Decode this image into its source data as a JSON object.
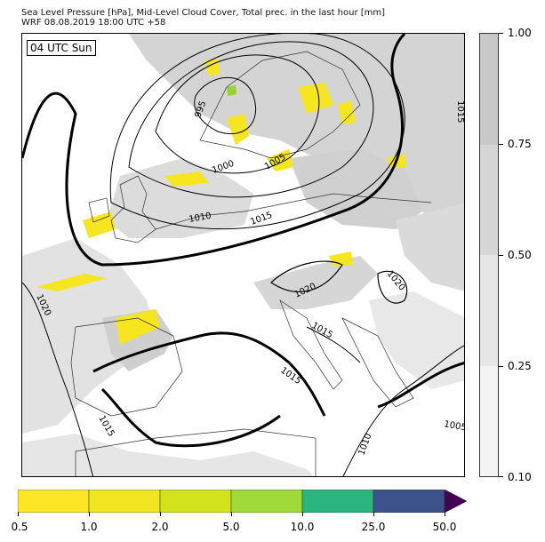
{
  "title": {
    "line1": "Sea Level Pressure [hPa], Mid-Level Cloud Cover, Total prec. in the last hour [mm]",
    "line2": "WRF 08.08.2019 18:00 UTC +58"
  },
  "map": {
    "time_label": "04 UTC Sun",
    "isobar_labels": [
      {
        "id": "isobar-995",
        "text": "995"
      },
      {
        "id": "isobar-1000",
        "text": "1000"
      },
      {
        "id": "isobar-1005-north",
        "text": "1005"
      },
      {
        "id": "isobar-1010-north",
        "text": "1010"
      },
      {
        "id": "isobar-1015-north",
        "text": "1015"
      },
      {
        "id": "isobar-1020-west",
        "text": "1020"
      },
      {
        "id": "isobar-1020-alps",
        "text": "1020"
      },
      {
        "id": "isobar-1020-east",
        "text": "1020"
      },
      {
        "id": "isobar-1015-italy",
        "text": "1015"
      },
      {
        "id": "isobar-1015-adriatic",
        "text": "1015"
      },
      {
        "id": "isobar-1015-spain",
        "text": "1015"
      },
      {
        "id": "isobar-1010-south",
        "text": "1010"
      },
      {
        "id": "isobar-1005-southeast",
        "text": "1005"
      },
      {
        "id": "isobar-1015-edge",
        "text": "1015"
      }
    ],
    "colors": {
      "cloud_light": "#e6e6e6",
      "cloud_mid": "#cfcfcf",
      "precip_yellow": "#f5e61f",
      "precip_green": "#9ad12a",
      "isobar": "#000000",
      "coast": "#333333"
    }
  },
  "cloud_colorbar": {
    "ticks": [
      "1.00",
      "0.75",
      "0.50",
      "0.25",
      "0.10"
    ],
    "colors": [
      "#c8c8c8",
      "#d6d6d6",
      "#e6e6e6",
      "#f4f4f4"
    ]
  },
  "precip_colorbar": {
    "ticks": [
      "0.5",
      "1.0",
      "2.0",
      "5.0",
      "10.0",
      "25.0",
      "50.0"
    ],
    "colors": [
      "#fde725",
      "#f0e51f",
      "#d2e21b",
      "#a0da39",
      "#2ab57f",
      "#3b528b",
      "#440154"
    ]
  }
}
